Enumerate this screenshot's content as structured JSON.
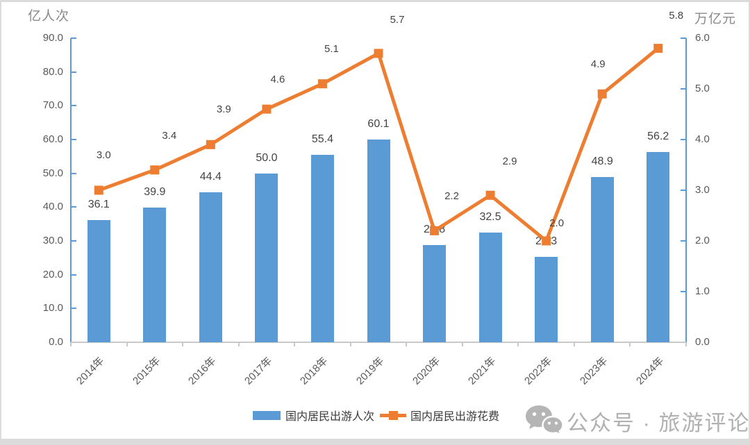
{
  "chart_data": {
    "type": "bar",
    "subtype": "combo-bar-line",
    "categories": [
      "2014年",
      "2015年",
      "2016年",
      "2017年",
      "2018年",
      "2019年",
      "2020年",
      "2021年",
      "2022年",
      "2023年",
      "2024年"
    ],
    "series": [
      {
        "name": "国内居民出游人次",
        "type": "bar",
        "axis": "left",
        "color": "#5B9BD5",
        "values": [
          36.1,
          39.9,
          44.4,
          50.0,
          55.4,
          60.1,
          28.8,
          32.5,
          25.3,
          48.9,
          56.2
        ],
        "labels": [
          "36.1",
          "39.9",
          "44.4",
          "50.0",
          "55.4",
          "60.1",
          "28.8",
          "32.5",
          "25.3",
          "48.9",
          "56.2"
        ]
      },
      {
        "name": "国内居民出游花费",
        "type": "line",
        "axis": "right",
        "color": "#ED7D31",
        "values": [
          3.0,
          3.4,
          3.9,
          4.6,
          5.1,
          5.7,
          2.2,
          2.9,
          2.0,
          4.9,
          5.8
        ],
        "labels": [
          "3.0",
          "3.4",
          "3.9",
          "4.6",
          "5.1",
          "5.7",
          "2.2",
          "2.9",
          "2.0",
          "4.9",
          "5.8"
        ],
        "label_offsets": [
          [
            7,
            -50
          ],
          [
            21,
            -49
          ],
          [
            19,
            -50
          ],
          [
            16,
            -42
          ],
          [
            13,
            -50
          ],
          [
            27,
            -48
          ],
          [
            25,
            -49
          ],
          [
            28,
            -48
          ],
          [
            15,
            -25
          ],
          [
            -6,
            -42
          ],
          [
            26,
            -47
          ]
        ]
      }
    ],
    "left_axis": {
      "title": "亿人次",
      "min": 0,
      "max": 90,
      "step": 10,
      "ticks": [
        "0.0",
        "10.0",
        "20.0",
        "30.0",
        "40.0",
        "50.0",
        "60.0",
        "70.0",
        "80.0",
        "90.0"
      ]
    },
    "right_axis": {
      "title": "万亿元",
      "min": 0,
      "max": 6,
      "step": 1,
      "ticks": [
        "0.0",
        "1.0",
        "2.0",
        "3.0",
        "4.0",
        "5.0",
        "6.0"
      ]
    },
    "grid": false,
    "legend_position": "bottom"
  },
  "legend": {
    "items": [
      {
        "label": "国内居民出游人次",
        "color": "#5B9BD5",
        "swatch": "bar"
      },
      {
        "label": "国内居民出游花费",
        "color": "#ED7D31",
        "swatch": "line"
      }
    ]
  },
  "footer": {
    "wechat_label": "公众号 · 旅游评论"
  },
  "colors": {
    "bar": "#5B9BD5",
    "line": "#ED7D31",
    "value_axis": "#5B9BD5",
    "category_axis": "#C9C9C9",
    "tick_label": "#595959",
    "data_label": "#444444",
    "axis_title": "#8A8A8A",
    "legend_text": "#3B3B3B",
    "watermark": "#B1B1B1",
    "frame": "#DBDBDB"
  }
}
